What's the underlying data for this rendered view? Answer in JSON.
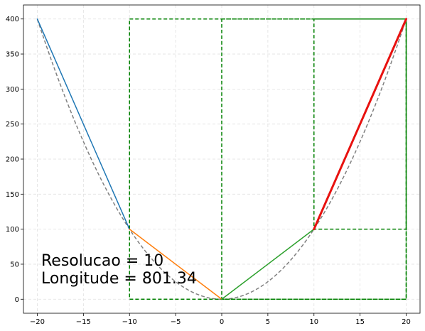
{
  "chart_data": {
    "type": "line",
    "title": "",
    "xlabel": "",
    "ylabel": "",
    "xlim": [
      -21.5,
      21.5
    ],
    "ylim": [
      -20,
      420
    ],
    "grid": true,
    "x_ticks": [
      -20,
      -15,
      -10,
      -5,
      0,
      5,
      10,
      15,
      20
    ],
    "y_ticks": [
      0,
      50,
      100,
      150,
      200,
      250,
      300,
      350,
      400
    ],
    "curve": {
      "function": "y = x^2",
      "x_range": [
        -20,
        20
      ],
      "color": "#808080",
      "style": "dashed"
    },
    "segments": [
      {
        "points": [
          [
            -20,
            400
          ],
          [
            -10,
            100
          ]
        ],
        "color": "#1f77b4"
      },
      {
        "points": [
          [
            -10,
            100
          ],
          [
            0,
            0
          ]
        ],
        "color": "#ff7f0e"
      },
      {
        "points": [
          [
            0,
            0
          ],
          [
            10,
            100
          ]
        ],
        "color": "#2ca02c"
      },
      {
        "points": [
          [
            10,
            100
          ],
          [
            20,
            400
          ]
        ],
        "color": "#e8110f",
        "highlight": true
      }
    ],
    "rectangles": [
      {
        "x": [
          -10,
          20
        ],
        "y": [
          0,
          400
        ],
        "color": "#008000"
      },
      {
        "x": [
          0,
          20
        ],
        "y": [
          0,
          400
        ],
        "color": "#008000"
      },
      {
        "x": [
          10,
          20
        ],
        "y": [
          100,
          400
        ],
        "color": "#008000"
      }
    ],
    "annotation": {
      "line1": "Resolucao = 10",
      "line2": "Longitude = 801.34"
    }
  }
}
